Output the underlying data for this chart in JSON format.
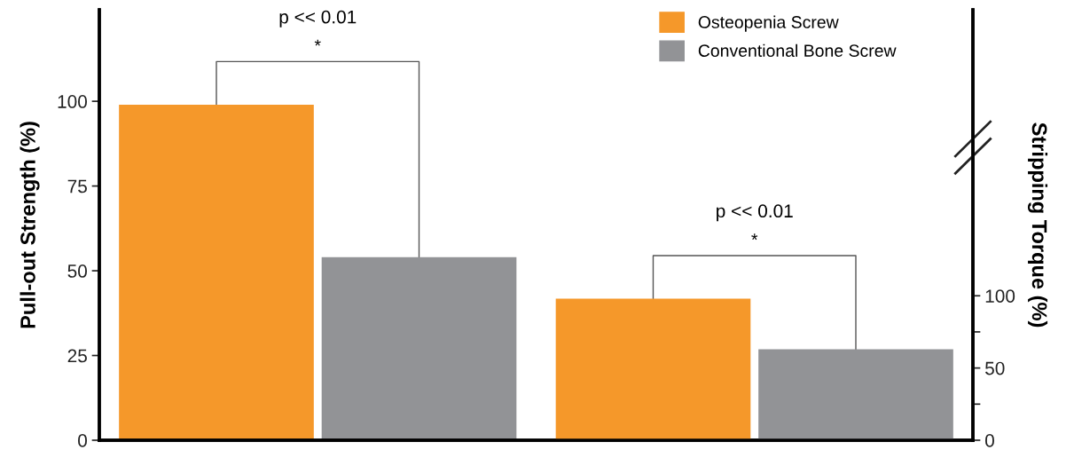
{
  "chart_data": {
    "type": "bar",
    "ylabel": "Pull-out Strength (%)",
    "y2label": "Stripping Torque (%)",
    "categories": [
      null,
      null
    ],
    "series": [
      {
        "name": "Osteopenia Screw",
        "color": "#f5982a",
        "values": [
          99,
          null
        ]
      },
      {
        "name": "Conventional Bone Screw",
        "color": "#929396",
        "values": [
          54,
          null
        ]
      },
      {
        "color": "#f5982a",
        "values": [
          null,
          98
        ],
        "axis": "y2"
      },
      {
        "color": "#929396",
        "values": [
          null,
          63
        ],
        "axis": "y2"
      }
    ],
    "ylim": [
      0,
      127
    ],
    "yticks": [
      0,
      25,
      50,
      75,
      100
    ],
    "y2lim": [
      0,
      298
    ],
    "y2ticks": [
      0,
      {
        "value": 25,
        "label": null
      },
      50,
      {
        "value": 75,
        "label": null
      },
      100
    ],
    "annotations": [
      "p << 0.01",
      "*",
      "p << 0.01",
      "*"
    ],
    "legend": "top right",
    "grid": false
  }
}
